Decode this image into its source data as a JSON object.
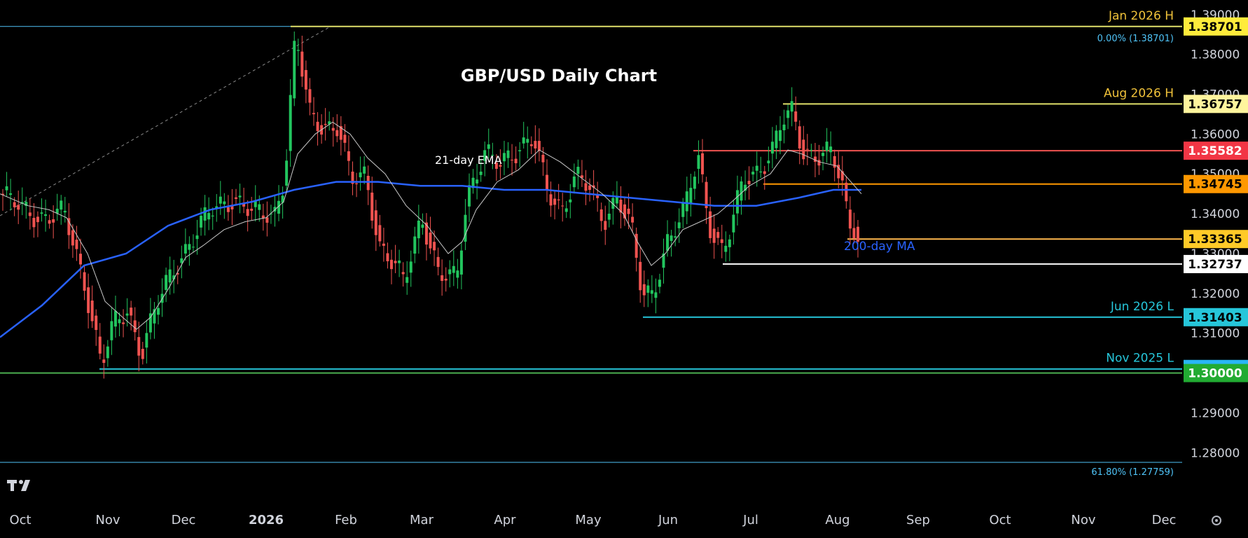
{
  "chart_data": {
    "type": "candlestick",
    "title": "GBP/USD Daily Chart",
    "ylim": [
      1.272,
      1.392
    ],
    "y_ticks": [
      "1.39000",
      "1.38000",
      "1.37000",
      "1.36000",
      "1.35000",
      "1.34000",
      "1.33000",
      "1.32000",
      "1.31000",
      "1.29000",
      "1.28000"
    ],
    "x_ticks": [
      "Oct",
      "Nov",
      "Dec",
      "2026",
      "Feb",
      "Mar",
      "Apr",
      "May",
      "Jun",
      "Jul",
      "Aug",
      "Sep",
      "Oct",
      "Nov",
      "Dec"
    ],
    "series": [
      {
        "name": "21-day EMA",
        "color": "#c8c8c8"
      },
      {
        "name": "200-day MA",
        "color": "#2962ff"
      }
    ],
    "ema21": [
      [
        0,
        1.345
      ],
      [
        40,
        1.342
      ],
      [
        70,
        1.341
      ],
      [
        95,
        1.339
      ],
      [
        125,
        1.33
      ],
      [
        150,
        1.318
      ],
      [
        175,
        1.314
      ],
      [
        195,
        1.311
      ],
      [
        215,
        1.314
      ],
      [
        240,
        1.321
      ],
      [
        265,
        1.329
      ],
      [
        290,
        1.332
      ],
      [
        320,
        1.336
      ],
      [
        350,
        1.338
      ],
      [
        380,
        1.339
      ],
      [
        405,
        1.343
      ],
      [
        425,
        1.355
      ],
      [
        450,
        1.36
      ],
      [
        475,
        1.363
      ],
      [
        500,
        1.36
      ],
      [
        525,
        1.354
      ],
      [
        550,
        1.35
      ],
      [
        580,
        1.342
      ],
      [
        610,
        1.337
      ],
      [
        640,
        1.33
      ],
      [
        660,
        1.333
      ],
      [
        680,
        1.341
      ],
      [
        710,
        1.348
      ],
      [
        740,
        1.351
      ],
      [
        770,
        1.356
      ],
      [
        800,
        1.353
      ],
      [
        830,
        1.349
      ],
      [
        860,
        1.345
      ],
      [
        890,
        1.34
      ],
      [
        910,
        1.333
      ],
      [
        930,
        1.327
      ],
      [
        950,
        1.33
      ],
      [
        975,
        1.336
      ],
      [
        1000,
        1.338
      ],
      [
        1025,
        1.34
      ],
      [
        1045,
        1.343
      ],
      [
        1070,
        1.347
      ],
      [
        1100,
        1.35
      ],
      [
        1125,
        1.356
      ],
      [
        1145,
        1.355
      ],
      [
        1170,
        1.353
      ],
      [
        1195,
        1.352
      ],
      [
        1215,
        1.348
      ],
      [
        1230,
        1.345
      ]
    ],
    "ma200": [
      [
        0,
        1.309
      ],
      [
        60,
        1.317
      ],
      [
        120,
        1.327
      ],
      [
        180,
        1.33
      ],
      [
        240,
        1.337
      ],
      [
        300,
        1.341
      ],
      [
        360,
        1.343
      ],
      [
        420,
        1.346
      ],
      [
        480,
        1.348
      ],
      [
        540,
        1.348
      ],
      [
        600,
        1.347
      ],
      [
        660,
        1.347
      ],
      [
        720,
        1.346
      ],
      [
        780,
        1.346
      ],
      [
        840,
        1.345
      ],
      [
        900,
        1.344
      ],
      [
        960,
        1.343
      ],
      [
        1020,
        1.342
      ],
      [
        1080,
        1.342
      ],
      [
        1140,
        1.344
      ],
      [
        1190,
        1.346
      ],
      [
        1230,
        1.346
      ]
    ],
    "anchors": [
      [
        0,
        1.345
      ],
      [
        30,
        1.341
      ],
      [
        60,
        1.339
      ],
      [
        90,
        1.34
      ],
      [
        120,
        1.322
      ],
      [
        143,
        1.302
      ],
      [
        160,
        1.312
      ],
      [
        180,
        1.316
      ],
      [
        200,
        1.305
      ],
      [
        220,
        1.316
      ],
      [
        245,
        1.326
      ],
      [
        270,
        1.333
      ],
      [
        300,
        1.341
      ],
      [
        330,
        1.344
      ],
      [
        360,
        1.34
      ],
      [
        390,
        1.34
      ],
      [
        405,
        1.35
      ],
      [
        420,
        1.385
      ],
      [
        440,
        1.365
      ],
      [
        460,
        1.362
      ],
      [
        480,
        1.362
      ],
      [
        500,
        1.348
      ],
      [
        520,
        1.35
      ],
      [
        540,
        1.332
      ],
      [
        575,
        1.323
      ],
      [
        600,
        1.34
      ],
      [
        625,
        1.324
      ],
      [
        650,
        1.324
      ],
      [
        665,
        1.345
      ],
      [
        690,
        1.355
      ],
      [
        710,
        1.352
      ],
      [
        740,
        1.357
      ],
      [
        760,
        1.359
      ],
      [
        780,
        1.345
      ],
      [
        800,
        1.341
      ],
      [
        820,
        1.35
      ],
      [
        840,
        1.346
      ],
      [
        860,
        1.338
      ],
      [
        880,
        1.345
      ],
      [
        900,
        1.336
      ],
      [
        915,
        1.319
      ],
      [
        930,
        1.32
      ],
      [
        950,
        1.333
      ],
      [
        975,
        1.34
      ],
      [
        995,
        1.355
      ],
      [
        1010,
        1.338
      ],
      [
        1030,
        1.33
      ],
      [
        1040,
        1.335
      ],
      [
        1060,
        1.349
      ],
      [
        1080,
        1.351
      ],
      [
        1100,
        1.355
      ],
      [
        1115,
        1.363
      ],
      [
        1130,
        1.366
      ],
      [
        1145,
        1.356
      ],
      [
        1165,
        1.354
      ],
      [
        1185,
        1.355
      ],
      [
        1200,
        1.348
      ],
      [
        1210,
        1.338
      ],
      [
        1220,
        1.337
      ],
      [
        1230,
        1.328
      ]
    ],
    "levels": [
      {
        "price": 1.38701,
        "label": "Jan 2026 H",
        "value_label": "1.38701",
        "color": "#e0e06a",
        "badge_color": "#ffeb3b",
        "badge_text_color": "#000000",
        "label_color": "#f0c23a",
        "x_start": 415
      },
      {
        "price": 1.36757,
        "label": "Aug 2026 H",
        "value_label": "1.36757",
        "color": "#e0e06a",
        "badge_color": "#fff59d",
        "badge_text_color": "#000000",
        "label_color": "#f0c23a",
        "x_start": 1118
      },
      {
        "price": 1.35582,
        "label": "",
        "value_label": "1.35582",
        "color": "#ef5350",
        "badge_color": "#f23645",
        "badge_text_color": "#ffffff",
        "label_color": "#ffffff",
        "x_start": 990
      },
      {
        "price": 1.34745,
        "label": "",
        "value_label": "1.34745",
        "color": "#ff9800",
        "badge_color": "#ff9800",
        "badge_text_color": "#000000",
        "label_color": "#ffffff",
        "x_start": 1090
      },
      {
        "price": 1.33365,
        "label": "",
        "value_label": "1.33365",
        "color": "#ffb74d",
        "badge_color": "#ffca28",
        "badge_text_color": "#000000",
        "label_color": "#ffffff",
        "x_start": 1210
      },
      {
        "price": 1.32737,
        "label": "",
        "value_label": "1.32737",
        "color": "#ffffff",
        "badge_color": "#ffffff",
        "badge_text_color": "#000000",
        "label_color": "#ffffff",
        "x_start": 1032
      },
      {
        "price": 1.31403,
        "label": "Jun 2026 L",
        "value_label": "1.31403",
        "color": "#26c6da",
        "badge_color": "#26c6da",
        "badge_text_color": "#000000",
        "label_color": "#26c6da",
        "x_start": 918
      },
      {
        "price": 1.30102,
        "label": "Nov 2025 L",
        "value_label": "1.30102",
        "color": "#26c6da",
        "badge_color": "#29b6f6",
        "badge_text_color": "#000000",
        "label_color": "#26c6da",
        "x_start": 142
      },
      {
        "price": 1.3,
        "label": "",
        "value_label": "1.30000",
        "color": "#4caf50",
        "badge_color": "#22ab32",
        "badge_text_color": "#ffffff",
        "label_color": "#ffffff",
        "x_start": 0
      }
    ],
    "fib": [
      {
        "price": 1.38701,
        "label": "0.00% (1.38701)",
        "color": "#4fc3f7"
      },
      {
        "price": 1.27759,
        "label": "61.80% (1.27759)",
        "color": "#4fc3f7"
      }
    ],
    "annotations": {
      "ema_label": "21-day EMA",
      "ma_label": "200-day MA"
    },
    "colors": {
      "up": "#26a69a",
      "up_fill": "#22c55e",
      "down": "#ef5350",
      "background": "#000000",
      "ema": "#c8c8c8",
      "ma": "#2962ff"
    },
    "logo": "tradingview-logo",
    "settings_icon": "gear-icon"
  }
}
